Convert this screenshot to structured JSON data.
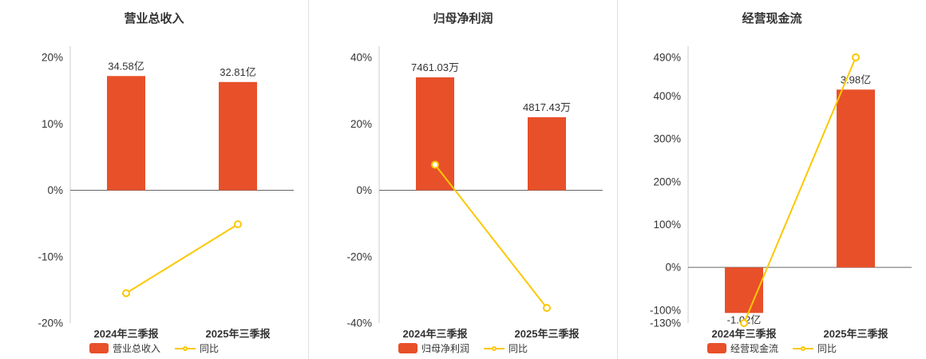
{
  "colors": {
    "bar": "#e8502a",
    "line": "#fcc800",
    "axis_line": "#cccccc",
    "zero_line": "#666666",
    "text": "#333333",
    "divider": "#e0e0e0",
    "marker_fill": "#ffffff"
  },
  "chart_data": [
    {
      "type": "bar",
      "title": "营业总收入",
      "categories": [
        "2024年三季报",
        "2025年三季报"
      ],
      "bar_series": {
        "name": "营业总收入",
        "unit": "亿",
        "values": [
          34.58,
          32.81
        ],
        "labels": [
          "34.58亿",
          "32.81亿"
        ],
        "display_pct": [
          17.2,
          16.3
        ]
      },
      "line_series": {
        "name": "同比",
        "unit": "%",
        "values": [
          -15.5,
          -5.12
        ]
      },
      "y_axis": {
        "min": -20,
        "max": 20,
        "ticks": [
          20,
          10,
          0,
          -10,
          -20
        ],
        "unit": "%"
      },
      "legend_position": "bottom",
      "grid": false
    },
    {
      "type": "bar",
      "title": "归母净利润",
      "categories": [
        "2024年三季报",
        "2025年三季报"
      ],
      "bar_series": {
        "name": "归母净利润",
        "unit": "万",
        "values": [
          7461.03,
          4817.43
        ],
        "labels": [
          "7461.03万",
          "4817.43万"
        ],
        "display_pct": [
          34.0,
          22.0
        ]
      },
      "line_series": {
        "name": "同比",
        "unit": "%",
        "values": [
          7.7,
          -35.43
        ]
      },
      "y_axis": {
        "min": -40,
        "max": 40,
        "ticks": [
          40,
          20,
          0,
          -20,
          -40
        ],
        "unit": "%"
      },
      "legend_position": "bottom",
      "grid": false
    },
    {
      "type": "bar",
      "title": "经营现金流",
      "categories": [
        "2024年三季报",
        "2025年三季报"
      ],
      "bar_series": {
        "name": "经营现金流",
        "unit": "亿",
        "values": [
          -1.02,
          3.98
        ],
        "labels": [
          "-1.02亿",
          "3.98亿"
        ],
        "display_pct": [
          -106.4,
          415
        ]
      },
      "line_series": {
        "name": "同比",
        "unit": "%",
        "values": [
          -130,
          490.2
        ]
      },
      "y_axis": {
        "min": -130,
        "max": 490,
        "ticks": [
          490,
          400,
          300,
          200,
          100,
          0,
          -100,
          -130
        ],
        "unit": "%"
      },
      "legend_position": "bottom",
      "grid": false
    }
  ]
}
